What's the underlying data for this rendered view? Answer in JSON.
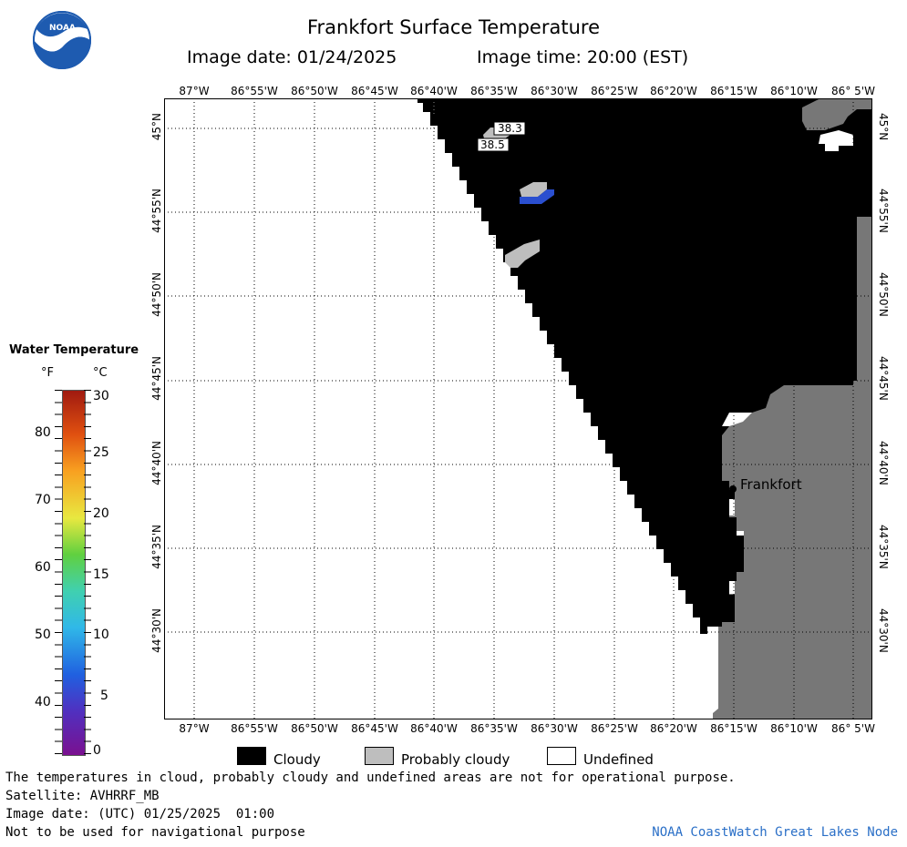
{
  "logo": {
    "text": "NOAA",
    "color": "#1e5bb0"
  },
  "header": {
    "title": "Frankfort Surface Temperature",
    "image_date": "Image date: 01/24/2025",
    "image_time": "Image time: 20:00 (EST)"
  },
  "map": {
    "lon_labels": [
      "87°W",
      "86°55'W",
      "86°50'W",
      "86°45'W",
      "86°40'W",
      "86°35'W",
      "86°30'W",
      "86°25'W",
      "86°20'W",
      "86°15'W",
      "86°10'W",
      "86° 5'W"
    ],
    "lat_labels": [
      "45°N",
      "44°55'N",
      "44°50'N",
      "44°45'N",
      "44°40'N",
      "44°35'N",
      "44°30'N"
    ],
    "city_label": "Frankfort",
    "temp_labels": [
      "38.3",
      "38.5"
    ],
    "colors": {
      "cloudy": "#000000",
      "probably_cloudy": "#bebebe",
      "land": "#777777",
      "undefined": "#ffffff",
      "cold_water": "#2a4fd0"
    }
  },
  "colorbar": {
    "title": "Water Temperature",
    "unit_f": "°F",
    "unit_c": "°C",
    "f_ticks": [
      "80",
      "70",
      "60",
      "50",
      "40"
    ],
    "c_ticks": [
      "30",
      "25",
      "20",
      "15",
      "10",
      "5",
      "0"
    ]
  },
  "legend": {
    "cloudy": "Cloudy",
    "probably_cloudy": "Probably cloudy",
    "undefined": "Undefined"
  },
  "footer": {
    "note": "The temperatures in cloud, probably cloudy and undefined areas are not for operational purpose.",
    "satellite": "Satellite: AVHRRF_MB",
    "utc_date": "Image date: (UTC) 01/25/2025  01:00",
    "nav_note": "Not to be used for navigational purpose",
    "credit": "NOAA CoastWatch Great Lakes Node"
  }
}
